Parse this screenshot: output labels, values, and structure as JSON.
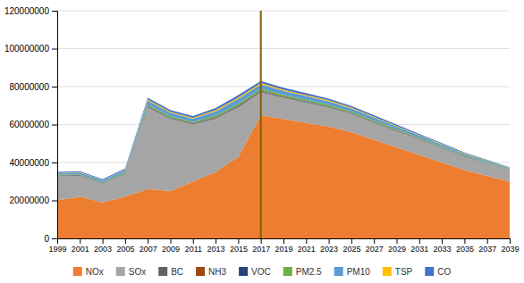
{
  "chart_data": {
    "type": "area",
    "stacked": true,
    "x": [
      1999,
      2001,
      2003,
      2005,
      2007,
      2009,
      2011,
      2013,
      2015,
      2017,
      2019,
      2021,
      2023,
      2025,
      2027,
      2029,
      2031,
      2033,
      2035,
      2037,
      2039
    ],
    "series": [
      {
        "name": "NOx",
        "color": "#ed7d31",
        "values": [
          20000000,
          22000000,
          19000000,
          22000000,
          26000000,
          25000000,
          30000000,
          35000000,
          43000000,
          65000000,
          63000000,
          61000000,
          59000000,
          56000000,
          52000000,
          48000000,
          44000000,
          40000000,
          36000000,
          33000000,
          30000000
        ]
      },
      {
        "name": "SOx",
        "color": "#a5a5a5",
        "values": [
          13000000,
          11000000,
          10000000,
          12000000,
          43000000,
          38000000,
          30000000,
          28000000,
          26000000,
          12000000,
          11000000,
          10500000,
          10000000,
          9500000,
          9000000,
          8500000,
          8000000,
          7500000,
          7000000,
          6500000,
          6000000
        ]
      },
      {
        "name": "BC",
        "color": "#636363",
        "values": [
          110000,
          130000,
          118000,
          150000,
          270000,
          240000,
          230000,
          295000,
          335000,
          310000,
          280000,
          260000,
          240000,
          220000,
          200000,
          180000,
          160000,
          140000,
          120000,
          100000,
          80000
        ]
      },
      {
        "name": "NH3",
        "color": "#9e480e",
        "values": [
          70000,
          85000,
          75000,
          95000,
          170000,
          150000,
          145000,
          185000,
          210000,
          195000,
          175000,
          163000,
          150000,
          138000,
          125000,
          112000,
          100000,
          88000,
          75000,
          63000,
          50000
        ]
      },
      {
        "name": "VOC",
        "color": "#264478",
        "values": [
          150000,
          180000,
          160000,
          200000,
          350000,
          310000,
          295000,
          380000,
          430000,
          400000,
          360000,
          335000,
          310000,
          285000,
          260000,
          235000,
          210000,
          185000,
          160000,
          135000,
          110000
        ]
      },
      {
        "name": "PM2.5",
        "color": "#70ad47",
        "values": [
          300000,
          380000,
          340000,
          450000,
          850000,
          770000,
          730000,
          940000,
          1070000,
          990000,
          900000,
          840000,
          775000,
          710000,
          645000,
          580000,
          515000,
          450000,
          385000,
          320000,
          255000
        ]
      },
      {
        "name": "PM10",
        "color": "#5b9bd5",
        "values": [
          800000,
          950000,
          850000,
          1100000,
          2000000,
          1800000,
          1700000,
          2200000,
          2500000,
          2300000,
          2100000,
          1950000,
          1800000,
          1650000,
          1500000,
          1350000,
          1200000,
          1050000,
          900000,
          750000,
          600000
        ]
      },
      {
        "name": "TSP",
        "color": "#ffc000",
        "values": [
          200000,
          250000,
          220000,
          280000,
          500000,
          450000,
          480000,
          600000,
          700000,
          650000,
          580000,
          540000,
          500000,
          460000,
          420000,
          380000,
          340000,
          300000,
          260000,
          220000,
          180000
        ]
      },
      {
        "name": "CO",
        "color": "#4472c4",
        "values": [
          400000,
          480000,
          430000,
          540000,
          980000,
          880000,
          840000,
          1080000,
          1230000,
          1140000,
          1030000,
          960000,
          880000,
          810000,
          735000,
          660000,
          590000,
          515000,
          440000,
          365000,
          290000
        ]
      }
    ],
    "annotations": [
      {
        "type": "vline",
        "x": 2017,
        "color": "#7f6000"
      }
    ],
    "xlim": [
      1999,
      2039
    ],
    "xticks": [
      1999,
      2001,
      2003,
      2005,
      2007,
      2009,
      2011,
      2013,
      2015,
      2017,
      2019,
      2021,
      2023,
      2025,
      2027,
      2029,
      2031,
      2033,
      2035,
      2037,
      2039
    ],
    "ylim": [
      0,
      120000000
    ],
    "yticks": [
      0,
      20000000,
      40000000,
      60000000,
      80000000,
      100000000,
      120000000
    ],
    "grid": true,
    "legend": "bottom"
  }
}
